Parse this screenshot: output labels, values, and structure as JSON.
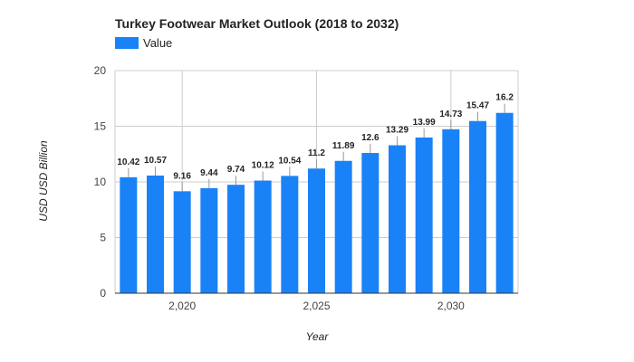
{
  "chart_data": {
    "type": "bar",
    "title": "Turkey Footwear Market Outlook (2018 to 2032)",
    "xlabel": "Year",
    "ylabel": "USD USD Billion",
    "legend": {
      "entries": [
        "Value"
      ],
      "position": "top-left"
    },
    "categories": [
      2018,
      2019,
      2020,
      2021,
      2022,
      2023,
      2024,
      2025,
      2026,
      2027,
      2028,
      2029,
      2030,
      2031,
      2032
    ],
    "series": [
      {
        "name": "Value",
        "color": "#1a82f7",
        "values": [
          10.42,
          10.57,
          9.16,
          9.44,
          9.74,
          10.12,
          10.54,
          11.2,
          11.89,
          12.6,
          13.29,
          13.99,
          14.73,
          15.47,
          16.2
        ]
      }
    ],
    "ylim": [
      0,
      20
    ],
    "yticks": [
      "0",
      "5",
      "10",
      "15",
      "20"
    ],
    "xticks": [
      {
        "value": 2020,
        "label": "2,020"
      },
      {
        "value": 2025,
        "label": "2,025"
      },
      {
        "value": 2030,
        "label": "2,030"
      }
    ],
    "grid": true
  }
}
